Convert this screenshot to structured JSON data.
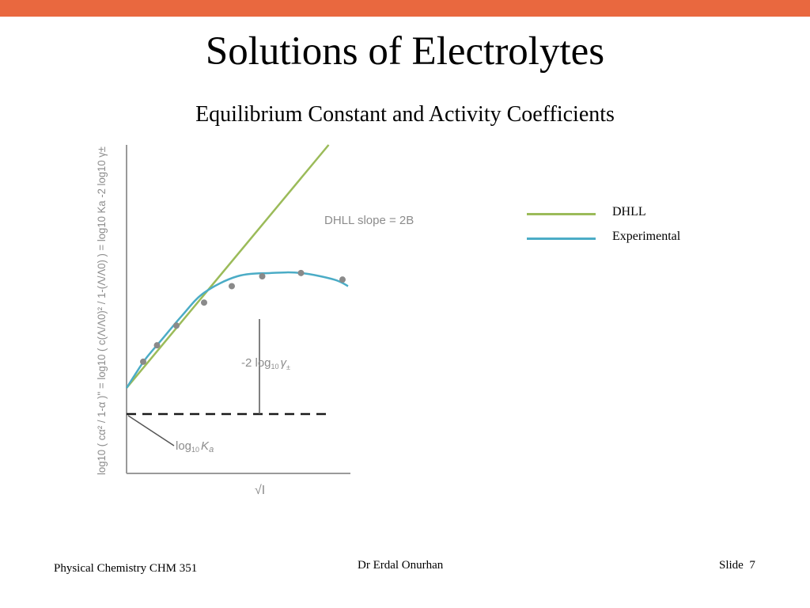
{
  "slide": {
    "title": "Solutions of Electrolytes",
    "subtitle": "Equilibrium Constant and Activity Coefficients",
    "accent_color": "#e9683f"
  },
  "legend": {
    "items": [
      {
        "label": "DHLL",
        "color": "#9bbb59"
      },
      {
        "label": "Experimental",
        "color": "#4bacc6"
      }
    ]
  },
  "footer": {
    "course": "Physical Chemistry CHM 351",
    "author": "Dr Erdal Onurhan",
    "slide_label": "Slide",
    "slide_number": "7"
  },
  "chart_data": {
    "type": "line",
    "xlabel": "√I",
    "ylabel": "log10 ( cα² / 1-α )'' = log10 ( c(Λ/Λ0)² / 1-(Λ/Λ0) ) = log10 Ka -2 log10 γ±",
    "annotations": {
      "dhll_slope": "DHLL slope = 2B",
      "gap_prefix": "-2 log",
      "gap_sub": "10",
      "gap_gamma": "γ",
      "gap_pm": "±",
      "intercept_prefix": "log",
      "intercept_sub": "10",
      "intercept_k": "K",
      "intercept_a": "a"
    },
    "xlim": [
      0,
      1
    ],
    "ylim": [
      0,
      1
    ],
    "grid": false,
    "baseline_y": 0.26,
    "series": [
      {
        "name": "DHLL",
        "color": "#9bbb59",
        "x": [
          0,
          0.73
        ],
        "y": [
          0.26,
          1.0
        ]
      },
      {
        "name": "Experimental",
        "color": "#4bacc6",
        "x": [
          0,
          0.03,
          0.07,
          0.13,
          0.2,
          0.28,
          0.4,
          0.52,
          0.63,
          0.75,
          0.8
        ],
        "y": [
          0.26,
          0.3,
          0.35,
          0.41,
          0.48,
          0.55,
          0.6,
          0.61,
          0.61,
          0.59,
          0.57
        ]
      }
    ],
    "points": {
      "x": [
        0.06,
        0.11,
        0.18,
        0.28,
        0.38,
        0.49,
        0.63,
        0.78
      ],
      "y": [
        0.34,
        0.39,
        0.45,
        0.52,
        0.57,
        0.6,
        0.61,
        0.59
      ]
    },
    "axis_color": "#9a9a9a",
    "label_color": "#8c8c8c",
    "point_color": "#8a8a8a"
  }
}
